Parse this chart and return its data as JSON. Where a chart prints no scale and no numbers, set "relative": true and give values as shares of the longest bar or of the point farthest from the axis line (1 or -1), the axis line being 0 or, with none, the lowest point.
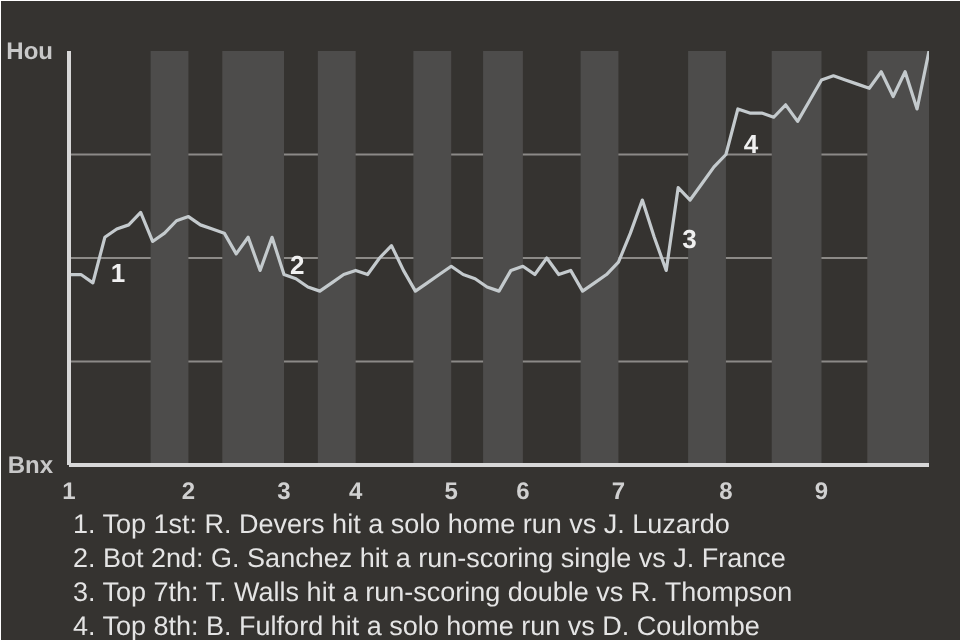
{
  "chart_data": {
    "type": "line",
    "relative": true,
    "categories": [
      "1",
      null,
      null,
      null,
      null,
      null,
      null,
      null,
      null,
      null,
      "2",
      null,
      null,
      null,
      null,
      null,
      null,
      null,
      "3",
      null,
      null,
      null,
      null,
      null,
      "4",
      null,
      null,
      null,
      null,
      null,
      null,
      null,
      "5",
      null,
      null,
      null,
      null,
      null,
      "6",
      null,
      null,
      null,
      null,
      null,
      null,
      null,
      "7",
      null,
      null,
      null,
      null,
      null,
      null,
      null,
      null,
      "8",
      null,
      null,
      null,
      null,
      null,
      null,
      null,
      "9",
      null,
      null,
      null,
      null,
      null,
      null,
      null,
      null,
      null
    ],
    "series": [
      {
        "color": "#c4cacd",
        "values": [
          0.46,
          0.46,
          0.44,
          0.55,
          0.57,
          0.58,
          0.61,
          0.54,
          0.56,
          0.59,
          0.6,
          0.58,
          0.57,
          0.56,
          0.51,
          0.55,
          0.47,
          0.55,
          0.46,
          0.45,
          0.43,
          0.42,
          0.44,
          0.46,
          0.47,
          0.46,
          0.5,
          0.53,
          0.47,
          0.42,
          0.44,
          0.46,
          0.48,
          0.46,
          0.45,
          0.43,
          0.42,
          0.47,
          0.48,
          0.46,
          0.5,
          0.46,
          0.47,
          0.42,
          0.44,
          0.46,
          0.49,
          0.56,
          0.64,
          0.55,
          0.47,
          0.67,
          0.64,
          0.68,
          0.72,
          0.75,
          0.86,
          0.85,
          0.85,
          0.84,
          0.87,
          0.83,
          0.88,
          0.93,
          0.94,
          0.93,
          0.92,
          0.91,
          0.95,
          0.89,
          0.95,
          0.86,
          1.0
        ]
      }
    ],
    "annotations": [
      "Hou",
      "Bnx",
      "1",
      "2",
      "3",
      "4",
      "1. Top 1st: R. Devers hit a solo home run vs J. Luzardo",
      "2. Bot 2nd: G. Sanchez hit a run-scoring single vs J. France",
      "3. Top 7th: T. Walls hit a run-scoring double vs R. Thompson",
      "4. Top 8th: B. Fulford hit a solo home run vs D. Coulombe"
    ]
  }
}
